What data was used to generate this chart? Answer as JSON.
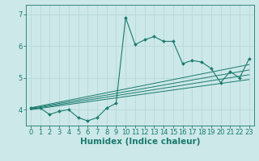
{
  "xlabel": "Humidex (Indice chaleur)",
  "background_color": "#cce8e8",
  "line_color": "#1a7a6e",
  "xlim": [
    -0.5,
    23.5
  ],
  "ylim": [
    3.5,
    7.3
  ],
  "yticks": [
    4,
    5,
    6,
    7
  ],
  "xticks": [
    0,
    1,
    2,
    3,
    4,
    5,
    6,
    7,
    8,
    9,
    10,
    11,
    12,
    13,
    14,
    15,
    16,
    17,
    18,
    19,
    20,
    21,
    22,
    23
  ],
  "main_series_x": [
    0,
    1,
    2,
    3,
    4,
    5,
    6,
    7,
    8,
    9,
    10,
    11,
    12,
    13,
    14,
    15,
    16,
    17,
    18,
    19,
    20,
    21,
    22,
    23
  ],
  "main_series_y": [
    4.05,
    4.05,
    3.85,
    3.95,
    4.0,
    3.75,
    3.65,
    3.75,
    4.05,
    4.2,
    6.9,
    6.05,
    6.2,
    6.3,
    6.15,
    6.15,
    5.45,
    5.55,
    5.5,
    5.3,
    4.85,
    5.2,
    5.0,
    5.6
  ],
  "regression_lines": [
    {
      "x": [
        0,
        23
      ],
      "y": [
        4.0,
        4.95
      ]
    },
    {
      "x": [
        0,
        23
      ],
      "y": [
        4.02,
        5.1
      ]
    },
    {
      "x": [
        0,
        23
      ],
      "y": [
        4.04,
        5.25
      ]
    },
    {
      "x": [
        0,
        23
      ],
      "y": [
        4.06,
        5.42
      ]
    }
  ],
  "grid_color": "#b8d8d8",
  "tick_fontsize": 6,
  "label_fontsize": 7.5
}
